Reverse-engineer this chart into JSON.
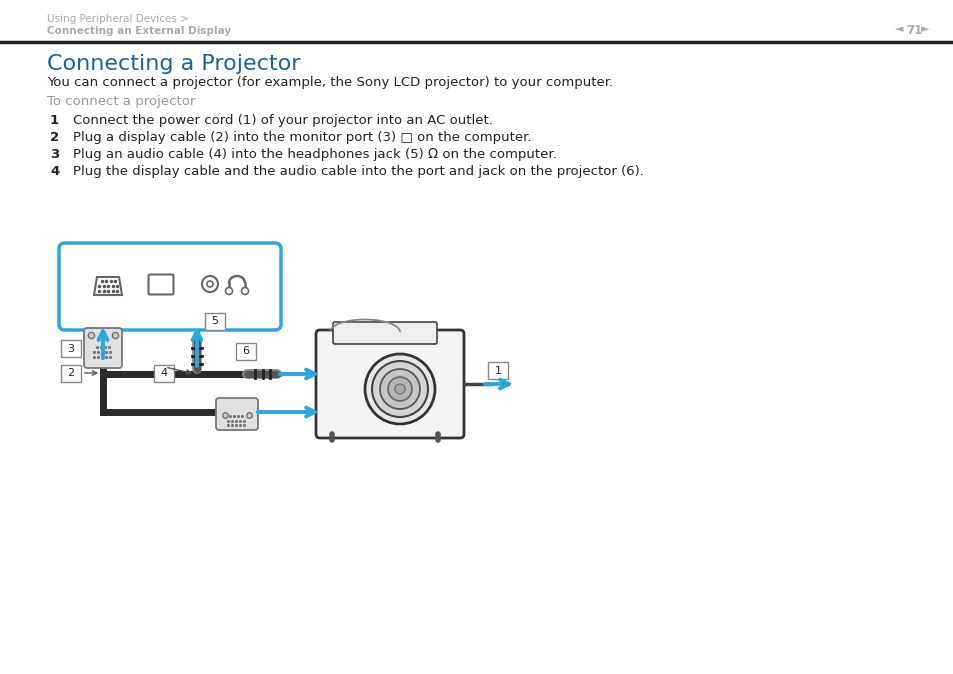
{
  "bg_color": "#ffffff",
  "header_text_line1": "Using Peripheral Devices >",
  "header_text_line2": "Connecting an External Display",
  "page_number": "71",
  "title": "Connecting a Projector",
  "title_color": "#1a6496",
  "intro_text": "You can connect a projector (for example, the Sony LCD projector) to your computer.",
  "subtitle": "To connect a projector",
  "subtitle_color": "#999999",
  "steps": [
    "Connect the power cord (1) of your projector into an AC outlet.",
    "Plug a display cable (2) into the monitor port (3) □ on the computer.",
    "Plug an audio cable (4) into the headphones jack (5) Ω on the computer.",
    "Plug the display cable and the audio cable into the port and jack on the projector (6)."
  ],
  "header_color": "#aaaaaa",
  "separator_color": "#222222",
  "diagram_box_color": "#29a8e0",
  "arrow_color": "#29a8e0",
  "text_color": "#222222",
  "label_border_color": "#888888"
}
